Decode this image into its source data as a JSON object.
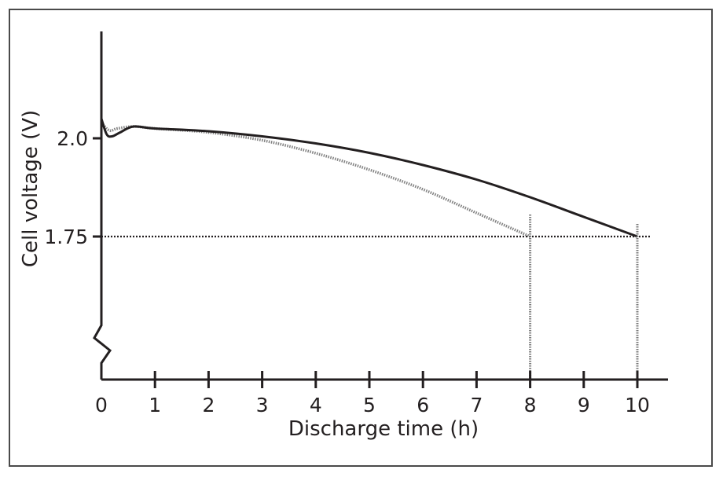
{
  "chart_data": {
    "type": "line",
    "xlabel": "Discharge time (h)",
    "ylabel": "Cell voltage (V)",
    "x_ticks": [
      "0",
      "1",
      "2",
      "3",
      "4",
      "5",
      "6",
      "7",
      "8",
      "9",
      "10"
    ],
    "y_ticks": [
      {
        "value": 2.0,
        "label": "2.0"
      },
      {
        "value": 1.75,
        "label": "1.75"
      }
    ],
    "xlim": [
      0,
      10.5
    ],
    "y_axis_broken": true,
    "grid": false,
    "legend": "none",
    "reference_lines": {
      "horizontal_at_voltage": 1.75,
      "vertical_at_hours": [
        8,
        10
      ]
    },
    "series": [
      {
        "line_style": "solid",
        "color": "#231f20",
        "x": [
          0,
          0.1,
          0.2,
          0.35,
          0.6,
          1,
          2,
          3,
          4,
          5,
          6,
          7,
          8,
          9,
          10
        ],
        "y": [
          2.05,
          2.01,
          2.005,
          2.015,
          2.03,
          2.025,
          2.018,
          2.005,
          1.987,
          1.963,
          1.932,
          1.895,
          1.85,
          1.8,
          1.75
        ]
      },
      {
        "line_style": "dotted",
        "color": "#808080",
        "x": [
          0,
          0.15,
          0.3,
          0.6,
          1,
          2,
          3,
          4,
          5,
          6,
          7,
          8
        ],
        "y": [
          2.04,
          2.02,
          2.025,
          2.03,
          2.025,
          2.015,
          1.995,
          1.962,
          1.92,
          1.87,
          1.81,
          1.75
        ]
      }
    ]
  }
}
